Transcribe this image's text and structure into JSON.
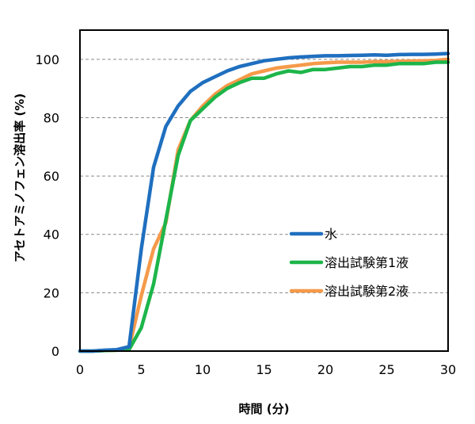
{
  "chart_data": {
    "type": "line",
    "title": "",
    "xlabel": "時間 (分)",
    "ylabel": "アセトアミノフェン溶出率 (%)",
    "xlim": [
      0,
      30
    ],
    "ylim": [
      0,
      110
    ],
    "xticks": [
      0,
      5,
      10,
      15,
      20,
      25,
      30
    ],
    "yticks": [
      0,
      20,
      40,
      60,
      80,
      100
    ],
    "grid": "horizontal dashed",
    "legend_position": "center-right",
    "x": [
      0,
      1,
      2,
      3,
      4,
      5,
      6,
      7,
      8,
      9,
      10,
      11,
      12,
      13,
      14,
      15,
      16,
      17,
      18,
      19,
      20,
      21,
      22,
      23,
      24,
      25,
      26,
      27,
      28,
      29,
      30
    ],
    "series": [
      {
        "name": "水",
        "color": "#1f6fbf",
        "values": [
          0,
          0,
          0.3,
          0.5,
          1.5,
          35,
          63,
          77,
          84,
          89,
          92,
          94,
          96,
          97.5,
          98.5,
          99.5,
          100,
          100.5,
          100.8,
          101,
          101.2,
          101.2,
          101.3,
          101.4,
          101.5,
          101.4,
          101.6,
          101.7,
          101.7,
          101.8,
          102
        ]
      },
      {
        "name": "溶出試験第1液",
        "color": "#1db54a",
        "values": [
          0,
          0,
          0.2,
          0.3,
          0.5,
          8,
          23,
          45,
          67,
          79,
          83,
          87,
          90,
          92,
          93.5,
          93.5,
          95,
          96,
          95.5,
          96.5,
          96.5,
          97,
          97.5,
          97.5,
          98,
          98,
          98.5,
          98.5,
          98.5,
          99,
          99
        ]
      },
      {
        "name": "溶出試験第2液",
        "color": "#f59a4a",
        "values": [
          0,
          0,
          0.2,
          0.3,
          1,
          19,
          35,
          44,
          69,
          79,
          84,
          88,
          91,
          93,
          95,
          96,
          97,
          97.5,
          98,
          98.5,
          98.8,
          99,
          99,
          99,
          99.2,
          99.2,
          99.3,
          99.4,
          99.5,
          99.6,
          100
        ]
      }
    ]
  }
}
